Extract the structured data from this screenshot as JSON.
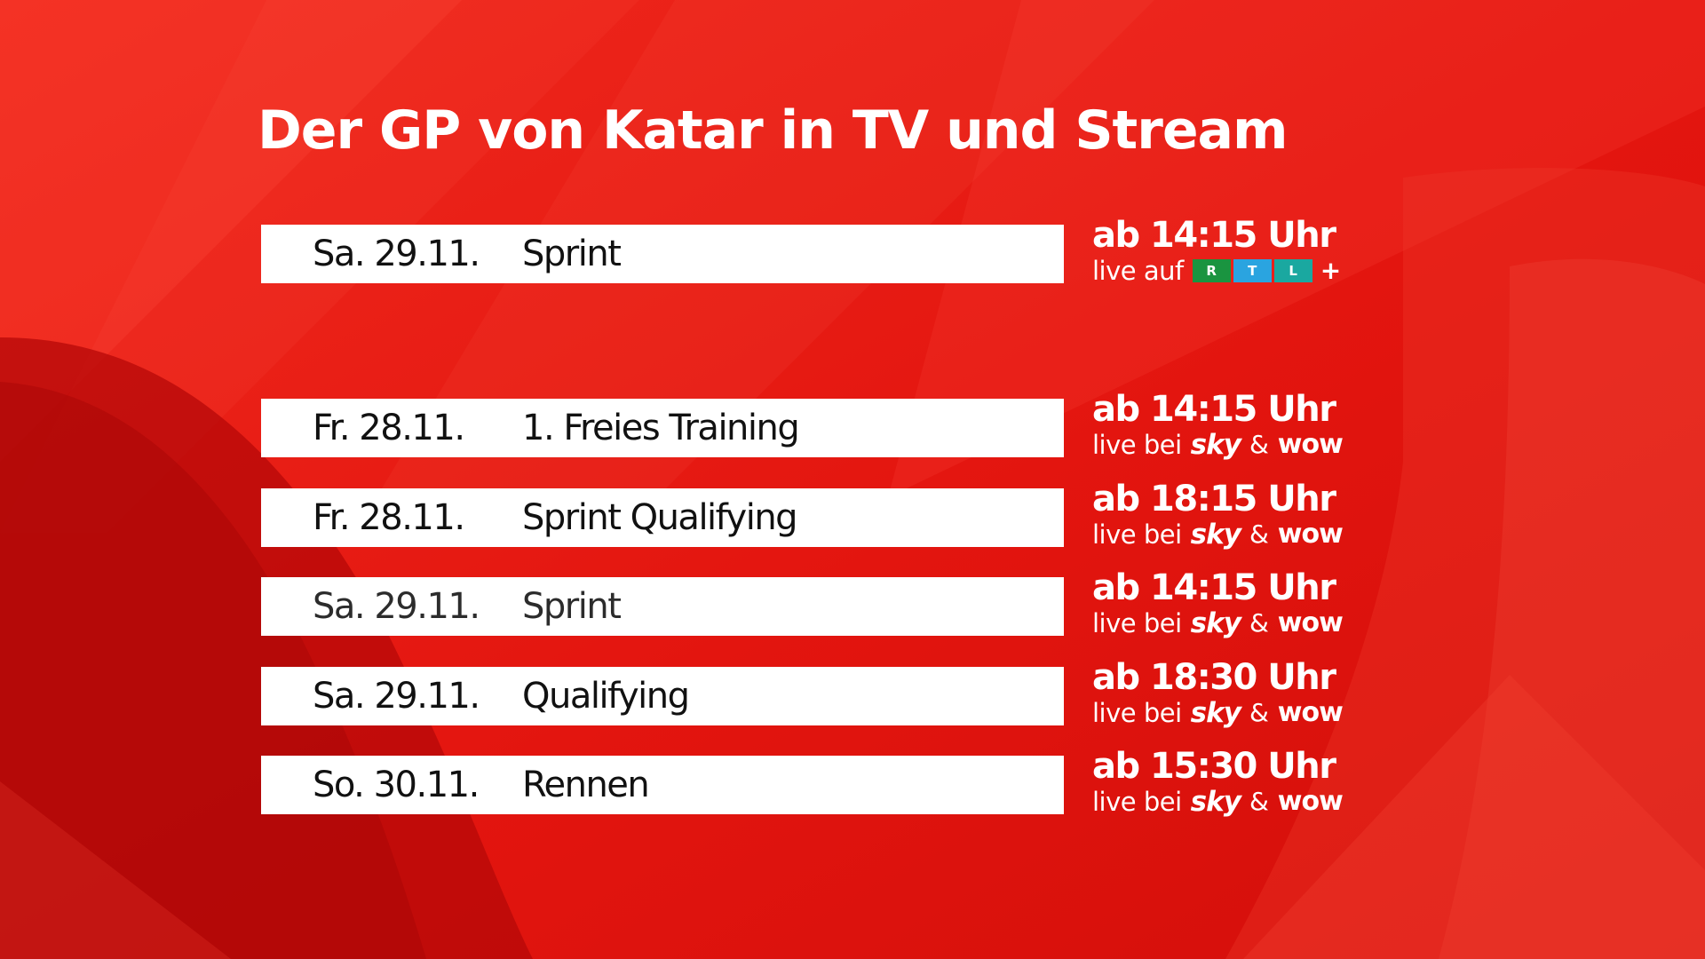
{
  "title": "Der GP von Katar in TV und Stream",
  "colors": {
    "background": "#e3150f",
    "bar": "#ffffff",
    "rtl_r": "#1a9440",
    "rtl_t": "#2aa4e0",
    "rtl_l": "#1aa8a0"
  },
  "highlight": {
    "date": "Sa. 29.11.",
    "event": "Sprint",
    "time": "ab 14:15 Uhr",
    "where_label": "live auf",
    "channel_logo": {
      "letters": [
        "R",
        "T",
        "L"
      ],
      "suffix": "+"
    }
  },
  "schedule": [
    {
      "date": "Fr. 28.11.",
      "event": "1. Freies Training",
      "time": "ab 14:15 Uhr",
      "where_label": "live bei",
      "provider1": "sky",
      "amp": "&",
      "provider2": "wow"
    },
    {
      "date": "Fr. 28.11.",
      "event": "Sprint Qualifying",
      "time": "ab 18:15 Uhr",
      "where_label": "live bei",
      "provider1": "sky",
      "amp": "&",
      "provider2": "wow"
    },
    {
      "date": "Sa. 29.11.",
      "event": "Sprint",
      "time": "ab 14:15 Uhr",
      "where_label": "live bei",
      "provider1": "sky",
      "amp": "&",
      "provider2": "wow"
    },
    {
      "date": "Sa. 29.11.",
      "event": "Qualifying",
      "time": "ab 18:30 Uhr",
      "where_label": "live bei",
      "provider1": "sky",
      "amp": "&",
      "provider2": "wow"
    },
    {
      "date": "So. 30.11.",
      "event": "Rennen",
      "time": "ab 15:30 Uhr",
      "where_label": "live bei",
      "provider1": "sky",
      "amp": "&",
      "provider2": "wow"
    }
  ]
}
